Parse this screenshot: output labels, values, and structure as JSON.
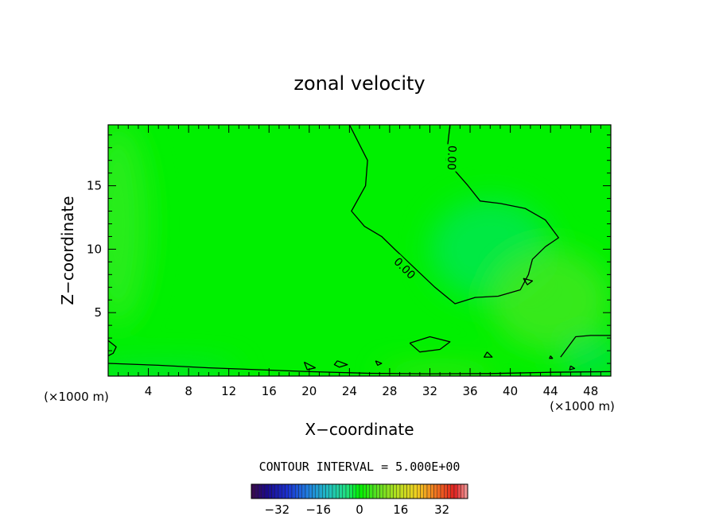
{
  "chart_data": {
    "type": "heatmap",
    "title": "zonal velocity",
    "xlabel": "X−coordinate",
    "ylabel": "Z−coordinate",
    "x_unit_left": "(×1000 m)",
    "x_unit_right": "(×1000 m)",
    "xlim": [
      0,
      50
    ],
    "ylim": [
      0,
      19.8
    ],
    "xticks": [
      4,
      8,
      12,
      16,
      20,
      24,
      28,
      32,
      36,
      40,
      44,
      48
    ],
    "xtick_labels": [
      "4",
      "8",
      "12",
      "16",
      "20",
      "24",
      "28",
      "32",
      "36",
      "40",
      "44",
      "48"
    ],
    "yticks": [
      5,
      10,
      15
    ],
    "ytick_labels": [
      "5",
      "10",
      "15"
    ],
    "grid": false,
    "contour_interval_text": "CONTOUR INTERVAL = 5.000E+00",
    "contour_labels": [
      "0.00",
      "0.00"
    ],
    "contour_level": 0.0,
    "colorbar": {
      "range": [
        -42,
        42
      ],
      "ticks": [
        -32,
        -16,
        0,
        16,
        32
      ],
      "tick_labels": [
        "−32",
        "−16",
        "0",
        "16",
        "32"
      ],
      "stops": [
        {
          "v": -42,
          "color": "#3a0a4a"
        },
        {
          "v": -36,
          "color": "#1a0a8a"
        },
        {
          "v": -28,
          "color": "#1a30d0"
        },
        {
          "v": -20,
          "color": "#2080e0"
        },
        {
          "v": -12,
          "color": "#20c0c0"
        },
        {
          "v": -5,
          "color": "#20e080"
        },
        {
          "v": 0,
          "color": "#00f000"
        },
        {
          "v": 6,
          "color": "#50e020"
        },
        {
          "v": 14,
          "color": "#b0e020"
        },
        {
          "v": 22,
          "color": "#f0d020"
        },
        {
          "v": 30,
          "color": "#f07020"
        },
        {
          "v": 37,
          "color": "#e02020"
        },
        {
          "v": 42,
          "color": "#f0a0a0"
        }
      ]
    },
    "background_color": "#00f000",
    "field_blobs": [
      {
        "x": 38,
        "y": 10,
        "rx": 6,
        "ry": 4,
        "color": "#00e850"
      },
      {
        "x": 44,
        "y": 6,
        "rx": 6,
        "ry": 4,
        "color": "#40e820"
      },
      {
        "x": 1,
        "y": 12,
        "rx": 3,
        "ry": 8,
        "color": "#30ec20"
      },
      {
        "x": 5,
        "y": 0.4,
        "rx": 8,
        "ry": 0.6,
        "color": "#00e050"
      },
      {
        "x": 33,
        "y": 0.2,
        "rx": 6,
        "ry": 0.4,
        "color": "#70e020"
      },
      {
        "x": 48,
        "y": 1.5,
        "rx": 3,
        "ry": 1.5,
        "color": "#00e050"
      }
    ],
    "zero_contours": [
      [
        [
          24,
          19.8
        ],
        [
          25.8,
          17
        ],
        [
          25.6,
          15
        ],
        [
          24.2,
          13
        ],
        [
          25.5,
          11.8
        ],
        [
          27.2,
          11
        ],
        [
          28.5,
          10
        ],
        [
          30.5,
          8.5
        ],
        [
          32.5,
          7
        ],
        [
          34.5,
          5.7
        ],
        [
          36.5,
          6.2
        ],
        [
          38.8,
          6.3
        ],
        [
          41,
          6.8
        ],
        [
          41.8,
          8
        ],
        [
          42.2,
          9.2
        ],
        [
          43.5,
          10.2
        ],
        [
          44.8,
          10.9
        ],
        [
          43.5,
          12.3
        ],
        [
          41.5,
          13.2
        ],
        [
          39,
          13.6
        ],
        [
          37,
          13.8
        ],
        [
          35.8,
          15
        ],
        [
          33.6,
          17
        ],
        [
          34,
          19.8
        ]
      ],
      [
        [
          0,
          2.8
        ],
        [
          0.8,
          2.3
        ],
        [
          0.5,
          1.8
        ],
        [
          0,
          1.6
        ]
      ],
      [
        [
          0,
          1.0
        ],
        [
          5,
          0.85
        ],
        [
          10,
          0.65
        ],
        [
          15,
          0.5
        ],
        [
          20,
          0.35
        ],
        [
          26,
          0.22
        ],
        [
          32,
          0.18
        ],
        [
          38,
          0.2
        ],
        [
          44,
          0.3
        ],
        [
          50,
          0.35
        ]
      ],
      [
        [
          30,
          2.6
        ],
        [
          32,
          3.1
        ],
        [
          34,
          2.7
        ],
        [
          33,
          2.1
        ],
        [
          31,
          1.9
        ],
        [
          30,
          2.6
        ]
      ],
      [
        [
          45,
          1.5
        ],
        [
          46.5,
          3.1
        ],
        [
          48,
          3.2
        ],
        [
          50,
          3.2
        ]
      ],
      [
        [
          19.5,
          1.1
        ],
        [
          20.6,
          0.65
        ],
        [
          19.8,
          0.5
        ],
        [
          19.5,
          1.1
        ]
      ],
      [
        [
          22.8,
          1.2
        ],
        [
          23.8,
          0.9
        ],
        [
          23.0,
          0.7
        ],
        [
          22.5,
          0.9
        ],
        [
          22.8,
          1.2
        ]
      ],
      [
        [
          26.6,
          1.2
        ],
        [
          27.2,
          1.0
        ],
        [
          26.8,
          0.85
        ],
        [
          26.6,
          1.2
        ]
      ],
      [
        [
          41.3,
          7.7
        ],
        [
          42.2,
          7.5
        ],
        [
          41.7,
          7.2
        ],
        [
          41.3,
          7.7
        ]
      ],
      [
        [
          37.7,
          1.9
        ],
        [
          38.2,
          1.5
        ],
        [
          37.4,
          1.5
        ],
        [
          37.7,
          1.9
        ]
      ],
      [
        [
          46.0,
          0.8
        ],
        [
          46.4,
          0.6
        ],
        [
          45.9,
          0.5
        ],
        [
          46.0,
          0.8
        ]
      ],
      [
        [
          44.0,
          1.6
        ],
        [
          44.2,
          1.4
        ],
        [
          43.9,
          1.4
        ],
        [
          44.0,
          1.6
        ]
      ]
    ],
    "contour_label_positions": [
      {
        "x": 29.5,
        "y": 8.5,
        "angle": 45
      },
      {
        "x": 34.2,
        "y": 17.2,
        "angle": 92
      }
    ]
  }
}
